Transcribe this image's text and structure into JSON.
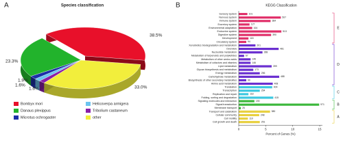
{
  "chart_data": [
    {
      "type": "pie",
      "panel": "A",
      "title": "Species classification",
      "categories": [
        "Bombyx mori",
        "Danaus plexippus",
        "Microtus ochrogaster",
        "Helicoverpa armigera",
        "Tribolium castaneum",
        "other"
      ],
      "values": [
        38.5,
        23.3,
        1.9,
        1.6,
        1.6,
        33.0
      ],
      "value_labels": [
        "38.5%",
        "23.3%",
        "1.9%",
        "1.6%",
        "1.6%",
        "33.0%"
      ],
      "colors": [
        "#e8102a",
        "#22b32c",
        "#1c2fa8",
        "#6cc4f0",
        "#8a1ea8",
        "#f2ee3c"
      ]
    },
    {
      "type": "grouped-hbar",
      "panel": "B",
      "title": "KEGG Classification",
      "x_label": "Percent of Genes (%)",
      "xlim": [
        0,
        15.5
      ],
      "xticks": [
        0,
        5,
        10,
        15
      ],
      "series": [
        {
          "name": "E",
          "color": "#e0306a",
          "categories": [
            "Sensory system",
            "Nervous system",
            "Immune system",
            "Excretory system",
            "Environmental adaptation",
            "Endocrine system",
            "Digestive system",
            "Development",
            "Circulatory system"
          ],
          "values": [
            1.6,
            7.8,
            5.9,
            2.0,
            2.5,
            7.9,
            6.0,
            1.8,
            1.4
          ],
          "gene_counts": [
            101,
            507,
            384,
            127,
            164,
            513,
            390,
            118,
            94
          ]
        },
        {
          "name": "D",
          "color": "#6a2fd0",
          "categories": [
            "Xenobiotics biodegradation and metabolism",
            "Overview",
            "Nucleotide metabolism",
            "Metabolism of terpenoids and polyketides",
            "Metabolism of other amino acids",
            "Metabolism of cofactors and vitamins",
            "Lipid metabolism",
            "Glycan biosynthesis and metabolism",
            "Energy metabolism",
            "Carbohydrate metabolism",
            "Biosynthesis of other secondary metabolites",
            "Amino acid metabolism"
          ],
          "values": [
            3.1,
            7.4,
            4.4,
            1.0,
            2.2,
            2.2,
            6.1,
            2.7,
            3.9,
            7.5,
            1.4,
            6.3
          ],
          "gene_counts": [
            201,
            481,
            288,
            67,
            146,
            146,
            399,
            173,
            256,
            488,
            90,
            408
          ]
        },
        {
          "name": "C",
          "color": "#3cc8e0",
          "categories": [
            "Translation",
            "Transcription",
            "Replication and repair",
            "Folding, sorting and degradation"
          ],
          "values": [
            6.2,
            3.9,
            1.8,
            6.4
          ],
          "gene_counts": [
            404,
            254,
            118,
            415
          ]
        },
        {
          "name": "B",
          "color": "#3cb83c",
          "categories": [
            "Signaling molecules and interaction",
            "Signal transduction",
            "Membrane transport"
          ],
          "values": [
            2.9,
            14.9,
            0.4
          ],
          "gene_counts": [
            190,
            971,
            26
          ]
        },
        {
          "name": "A",
          "color": "#e8d040",
          "categories": [
            "Transport and catabolism",
            "Cellular community",
            "Cell motility",
            "Cell growth and death"
          ],
          "values": [
            5.8,
            3.8,
            1.7,
            3.9
          ],
          "gene_counts": [
            380,
            248,
            110,
            251
          ]
        }
      ]
    }
  ]
}
